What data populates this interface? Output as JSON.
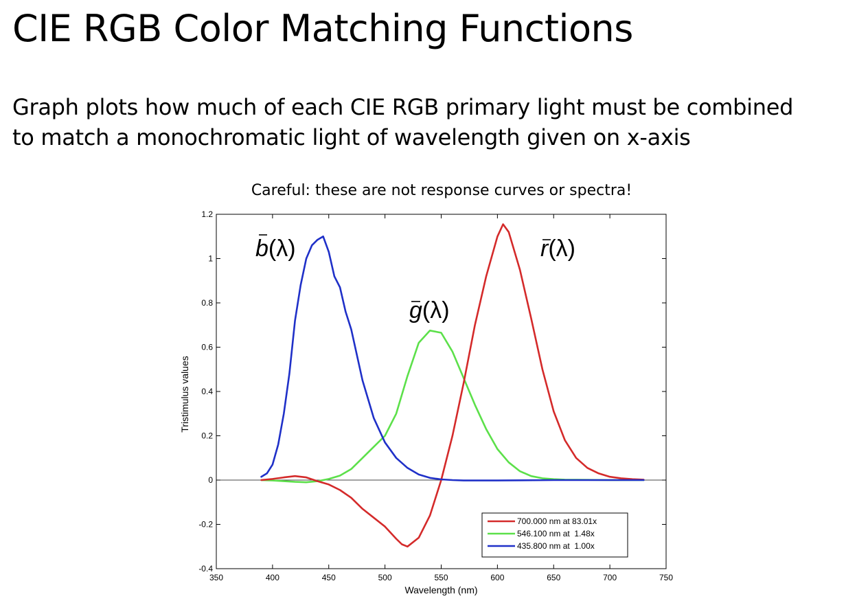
{
  "slide": {
    "title": "CIE RGB Color Matching Functions",
    "subtitle_line1": "Graph plots how much of each CIE RGB primary light must be combined",
    "subtitle_line2": "to match a monochromatic light of wavelength given on x-axis",
    "caution": "Careful: these are not response curves or spectra!"
  },
  "chart_data": {
    "type": "line",
    "title": "",
    "xlabel": "Wavelength (nm)",
    "ylabel": "Tristimulus values",
    "xlim": [
      350,
      750
    ],
    "ylim": [
      -0.4,
      1.2
    ],
    "xticks": [
      350,
      400,
      450,
      500,
      550,
      600,
      650,
      700,
      750
    ],
    "yticks": [
      -0.4,
      -0.2,
      0,
      0.2,
      0.4,
      0.6,
      0.8,
      1,
      1.2
    ],
    "xtick_labels": [
      "350",
      "400",
      "450",
      "500",
      "550",
      "600",
      "650",
      "700",
      "750"
    ],
    "ytick_labels": [
      "-0.4",
      "-0.2",
      "0",
      "0.2",
      "0.4",
      "0.6",
      "0.8",
      "1",
      "1.2"
    ],
    "grid": false,
    "zero_line": true,
    "legend_position": "bottom-right",
    "series": [
      {
        "name": "700.000 nm at 83.01x",
        "label_char": "r",
        "color": "#d42a2a",
        "x": [
          390,
          400,
          410,
          420,
          430,
          440,
          450,
          460,
          470,
          480,
          490,
          500,
          510,
          515,
          520,
          530,
          540,
          550,
          560,
          570,
          580,
          590,
          600,
          605,
          610,
          620,
          630,
          640,
          650,
          660,
          670,
          680,
          690,
          700,
          710,
          720,
          730
        ],
        "y": [
          0.0,
          0.005,
          0.012,
          0.018,
          0.012,
          -0.005,
          -0.02,
          -0.045,
          -0.08,
          -0.13,
          -0.17,
          -0.21,
          -0.265,
          -0.29,
          -0.3,
          -0.26,
          -0.16,
          0.0,
          0.2,
          0.44,
          0.7,
          0.92,
          1.1,
          1.155,
          1.12,
          0.95,
          0.73,
          0.5,
          0.31,
          0.18,
          0.1,
          0.055,
          0.03,
          0.015,
          0.008,
          0.004,
          0.002
        ]
      },
      {
        "name": "546.100 nm at  1.48x",
        "label_char": "g",
        "color": "#5ce04a",
        "x": [
          390,
          400,
          410,
          420,
          430,
          440,
          450,
          460,
          470,
          480,
          490,
          500,
          510,
          520,
          530,
          540,
          550,
          560,
          570,
          580,
          590,
          600,
          610,
          620,
          630,
          640,
          650,
          660,
          680,
          700,
          730
        ],
        "y": [
          0.0,
          -0.002,
          -0.005,
          -0.008,
          -0.01,
          -0.005,
          0.005,
          0.02,
          0.05,
          0.1,
          0.15,
          0.2,
          0.3,
          0.47,
          0.62,
          0.675,
          0.665,
          0.58,
          0.46,
          0.34,
          0.23,
          0.14,
          0.08,
          0.04,
          0.018,
          0.008,
          0.004,
          0.002,
          0.001,
          0.0,
          0.0
        ]
      },
      {
        "name": "435.800 nm at  1.00x",
        "label_char": "b",
        "color": "#1f30c8",
        "x": [
          390,
          395,
          400,
          405,
          410,
          415,
          420,
          425,
          430,
          435,
          440,
          445,
          450,
          455,
          460,
          465,
          470,
          480,
          490,
          500,
          510,
          520,
          530,
          540,
          550,
          560,
          570,
          600,
          650,
          700,
          730
        ],
        "y": [
          0.015,
          0.03,
          0.07,
          0.16,
          0.3,
          0.48,
          0.72,
          0.88,
          1.0,
          1.06,
          1.085,
          1.1,
          1.03,
          0.92,
          0.87,
          0.76,
          0.68,
          0.45,
          0.28,
          0.17,
          0.1,
          0.055,
          0.025,
          0.01,
          0.003,
          0.0,
          -0.002,
          -0.002,
          0.0,
          0.0,
          0.0
        ]
      }
    ]
  }
}
